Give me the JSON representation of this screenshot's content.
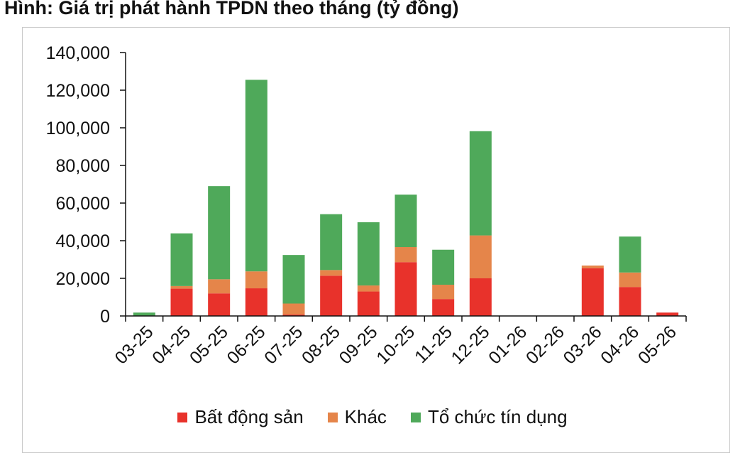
{
  "title": "Hình: Giá trị phát hành TPDN theo tháng (tỷ đồng)",
  "chart_data": {
    "type": "bar",
    "stacked": true,
    "title": "Hình: Giá trị phát hành TPDN theo tháng (tỷ đồng)",
    "xlabel": "",
    "ylabel": "",
    "ylim": [
      0,
      140000
    ],
    "yticks": [
      "0",
      "20,000",
      "40,000",
      "60,000",
      "80,000",
      "100,000",
      "120,000",
      "140,000"
    ],
    "categories": [
      "03-25",
      "04-25",
      "05-25",
      "06-25",
      "07-25",
      "08-25",
      "09-25",
      "10-25",
      "11-25",
      "12-25",
      "01-26",
      "02-26",
      "03-26",
      "04-26",
      "05-26"
    ],
    "series": [
      {
        "name": "Bất động sản",
        "color": "#e8322b",
        "values": [
          0,
          14500,
          12000,
          14700,
          800,
          21400,
          13000,
          28600,
          9000,
          20000,
          0,
          0,
          25400,
          15400,
          1800
        ]
      },
      {
        "name": "Khác",
        "color": "#e5854a",
        "values": [
          0,
          1400,
          7500,
          9000,
          5800,
          3000,
          3200,
          8000,
          7600,
          22800,
          0,
          0,
          1400,
          7700,
          0
        ]
      },
      {
        "name": "Tổ chức tín dụng",
        "color": "#4fa95a",
        "values": [
          1800,
          28000,
          49500,
          101800,
          25800,
          29700,
          33600,
          27900,
          18600,
          55400,
          0,
          0,
          0,
          19100,
          0
        ]
      }
    ],
    "legend_position": "bottom",
    "grid": false
  }
}
